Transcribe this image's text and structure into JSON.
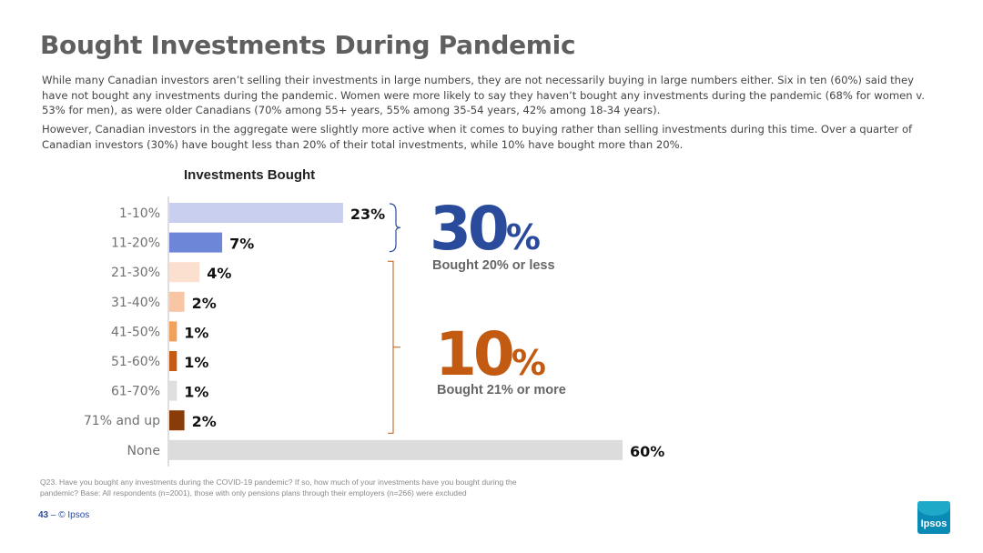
{
  "title": "Bought Investments During Pandemic",
  "paragraphs": [
    "While many Canadian investors aren’t selling their investments in large numbers, they are not necessarily buying in large numbers either. Six in ten (60%) said they have not bought any investments during the pandemic. Women were more likely to say they haven’t bought any investments during the pandemic (68% for women v. 53% for men), as were older Canadians (70% among 55+ years, 55% among 35-54 years, 42% among 18-34 years).",
    "However, Canadian investors in the aggregate were slightly more active when it comes to buying rather than selling investments during this time.  Over a quarter of Canadian investors (30%) have bought less than 20% of their total investments, while 10% have bought more than 20%."
  ],
  "chart_data": {
    "type": "bar",
    "orientation": "horizontal",
    "title": "Investments Bought",
    "categories": [
      "1-10%",
      "11-20%",
      "21-30%",
      "31-40%",
      "41-50%",
      "51-60%",
      "61-70%",
      "71% and up",
      "None"
    ],
    "values": [
      23,
      7,
      4,
      2,
      1,
      1,
      1,
      2,
      60
    ],
    "value_labels": [
      "23%",
      "7%",
      "4%",
      "2%",
      "1%",
      "1%",
      "1%",
      "2%",
      "60%"
    ],
    "colors": [
      "#c9d0ef",
      "#6e86d8",
      "#fbe0cf",
      "#f8c6a4",
      "#f2a15b",
      "#c45b10",
      "#dedede",
      "#8a3b0a",
      "#dcdcdc"
    ],
    "xlim": [
      0,
      60
    ],
    "grid": false
  },
  "callouts": [
    {
      "number": "30",
      "percent": "%",
      "label": "Bought 20% or less",
      "color": "#2a4b9b"
    },
    {
      "number": "10",
      "percent": "%",
      "label": "Bought 21% or more",
      "color": "#c25a12"
    }
  ],
  "footnote": "Q23. Have you bought any investments during the COVID-19 pandemic? If so, how much of your investments have you bought during the pandemic? Base: All respondents (n=2001), those with only pensions plans through their employers (n=266) were excluded",
  "footer": {
    "page": "43",
    "separator": "–",
    "copyright": "© Ipsos"
  },
  "logo_text": "Ipsos"
}
